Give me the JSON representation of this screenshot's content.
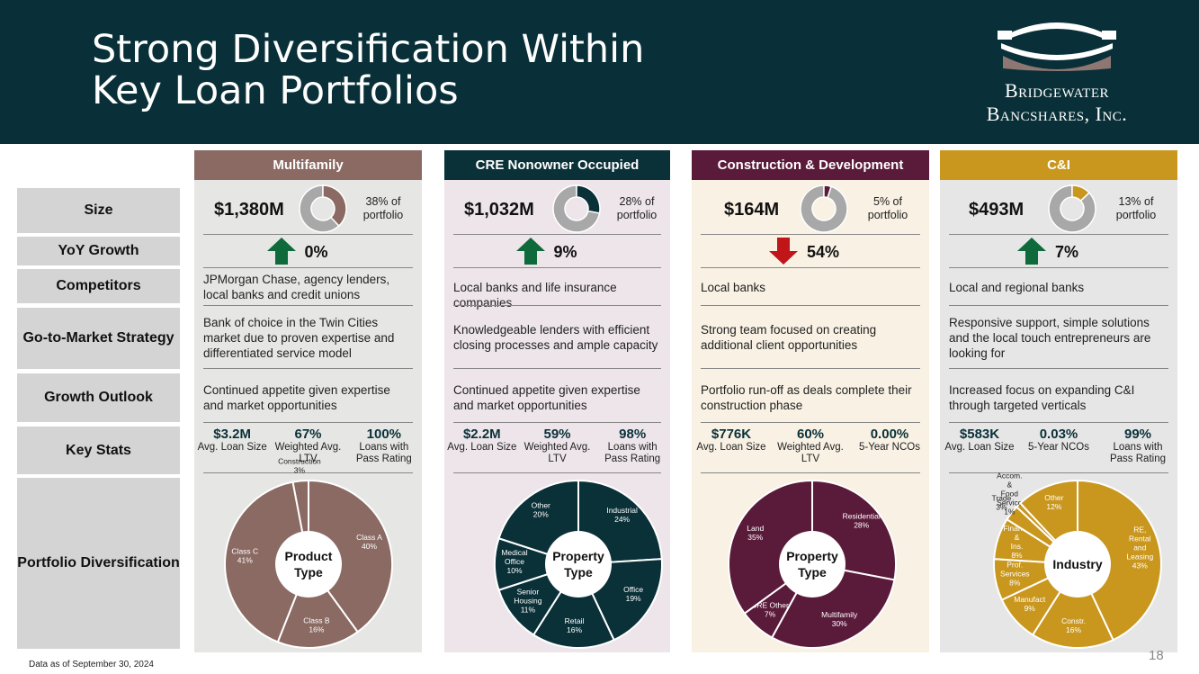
{
  "title_line1": "Strong Diversification Within",
  "title_line2": "Key Loan Portfolios",
  "logo": {
    "line1": "Bridgewater",
    "line2": "Bancshares, Inc."
  },
  "row_labels": {
    "size": "Size",
    "yoy": "YoY Growth",
    "competitors": "Competitors",
    "gtm": "Go-to-Market Strategy",
    "outlook": "Growth Outlook",
    "stats": "Key Stats",
    "diversification": "Portfolio Diversification"
  },
  "columns": [
    {
      "header": "Multifamily",
      "size": "$1,380M",
      "share_label": "38% of portfolio",
      "share_fraction": 0.38,
      "growth": "0%",
      "growth_dir": "up",
      "competitors": "JPMorgan Chase, agency lenders, local banks and credit unions",
      "gtm": "Bank of choice in the Twin Cities market due to proven expertise and differentiated service model",
      "outlook": "Continued appetite given expertise and market opportunities",
      "stats": [
        {
          "value": "$3.2M",
          "label": "Avg. Loan Size"
        },
        {
          "value": "67%",
          "label": "Weighted Avg. LTV"
        },
        {
          "value": "100%",
          "label": "Loans with Pass Rating"
        }
      ]
    },
    {
      "header": "CRE Nonowner Occupied",
      "size": "$1,032M",
      "share_label": "28% of portfolio",
      "share_fraction": 0.28,
      "growth": "9%",
      "growth_dir": "up",
      "competitors": "Local banks and life insurance companies",
      "gtm": "Knowledgeable lenders with efficient closing processes and ample capacity",
      "outlook": "Continued appetite given expertise and market opportunities",
      "stats": [
        {
          "value": "$2.2M",
          "label": "Avg. Loan Size"
        },
        {
          "value": "59%",
          "label": "Weighted Avg. LTV"
        },
        {
          "value": "98%",
          "label": "Loans with Pass Rating"
        }
      ]
    },
    {
      "header": "Construction & Development",
      "size": "$164M",
      "share_label": "5% of portfolio",
      "share_fraction": 0.05,
      "growth": "54%",
      "growth_dir": "down",
      "competitors": "Local banks",
      "gtm": "Strong team focused on creating additional client opportunities",
      "outlook": "Portfolio run-off as deals complete their construction phase",
      "stats": [
        {
          "value": "$776K",
          "label": "Avg. Loan Size"
        },
        {
          "value": "60%",
          "label": "Weighted Avg. LTV"
        },
        {
          "value": "0.00%",
          "label": "5-Year NCOs"
        }
      ]
    },
    {
      "header": "C&I",
      "size": "$493M",
      "share_label": "13% of portfolio",
      "share_fraction": 0.13,
      "growth": "7%",
      "growth_dir": "up",
      "competitors": "Local and regional banks",
      "gtm": "Responsive support, simple solutions and the local touch entrepreneurs are looking for",
      "outlook": "Increased focus on expanding C&I through targeted verticals",
      "stats": [
        {
          "value": "$583K",
          "label": "Avg. Loan Size"
        },
        {
          "value": "0.03%",
          "label": "5-Year NCOs"
        },
        {
          "value": "99%",
          "label": "Loans with Pass Rating"
        }
      ]
    }
  ],
  "chart_data": [
    {
      "type": "pie",
      "center_label": "Product Type",
      "categories": [
        "Class A",
        "Class B",
        "Class C",
        "Construction"
      ],
      "values": [
        40,
        16,
        41,
        3
      ],
      "labels": [
        "Class A 40%",
        "Class B 16%",
        "Class C 41%",
        "Construction 3%"
      ]
    },
    {
      "type": "pie",
      "center_label": "Property Type",
      "categories": [
        "Industrial",
        "Office",
        "Retail",
        "Senior Housing",
        "Medical Office",
        "Other"
      ],
      "values": [
        24,
        19,
        16,
        11,
        10,
        20
      ],
      "labels": [
        "Industrial 24%",
        "Office 19%",
        "Retail 16%",
        "Senior Housing 11%",
        "Medical Office 10%",
        "Other 20%"
      ]
    },
    {
      "type": "pie",
      "center_label": "Property Type",
      "categories": [
        "Residential",
        "Multifamily",
        "CRE Other",
        "Land"
      ],
      "values": [
        28,
        30,
        7,
        35
      ],
      "labels": [
        "Residential 28%",
        "Multifamily 30%",
        "CRE Other 7%",
        "Land 35%"
      ]
    },
    {
      "type": "pie",
      "center_label": "Industry",
      "categories": [
        "RE, Rental and Leasing",
        "Constr.",
        "Manufact",
        "Prof. Services",
        "Finance & Ins.",
        "Trade",
        "Accom. & Food Service",
        "Other"
      ],
      "values": [
        43,
        16,
        9,
        8,
        8,
        3,
        1,
        12
      ],
      "labels": [
        "RE, Rental and Leasing 43%",
        "Constr. 16%",
        "Manufact 9%",
        "Prof. Services 8%",
        "Finance & Ins. 8%",
        "Trade 3%",
        "Accom. & Food Service 1%",
        "Other 12%"
      ]
    }
  ],
  "colors": {
    "header_bg": "#093038",
    "multifamily": "#8a6a62",
    "cre": "#0a3038",
    "construction": "#5a1a3a",
    "ci": "#c9971e",
    "up_arrow": "#0e6a3a",
    "down_arrow": "#c0161a"
  },
  "footnote": "Data as of September 30, 2024",
  "page_number": "18"
}
